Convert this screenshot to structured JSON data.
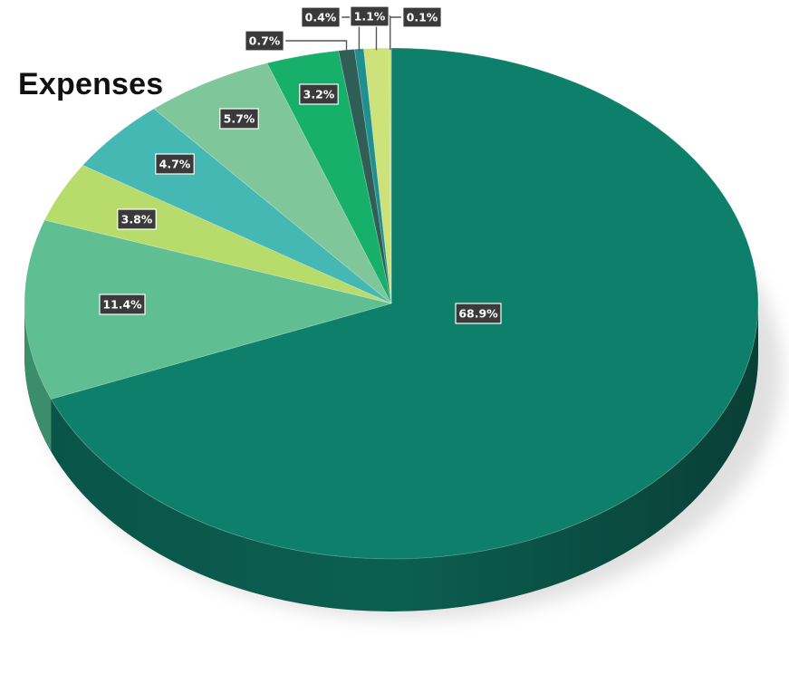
{
  "chart_data": {
    "type": "pie",
    "title": "Expenses",
    "labels_format": "percent",
    "slices": [
      {
        "label": "68.9%",
        "value": 68.9,
        "color": "#0e7f6a"
      },
      {
        "label": "11.4%",
        "value": 11.4,
        "color": "#5fbf92"
      },
      {
        "label": "3.8%",
        "value": 3.8,
        "color": "#b7dc6b"
      },
      {
        "label": "4.7%",
        "value": 4.7,
        "color": "#45b8b4"
      },
      {
        "label": "5.7%",
        "value": 5.7,
        "color": "#7fc79a"
      },
      {
        "label": "3.2%",
        "value": 3.2,
        "color": "#16b06a"
      },
      {
        "label": "0.7%",
        "value": 0.7,
        "color": "#2f5e56"
      },
      {
        "label": "0.4%",
        "value": 0.4,
        "color": "#1f8f8f"
      },
      {
        "label": "1.1%",
        "value": 1.1,
        "color": "#cde27a"
      },
      {
        "label": "0.1%",
        "value": 0.1,
        "color": "#bfe06a"
      }
    ]
  }
}
